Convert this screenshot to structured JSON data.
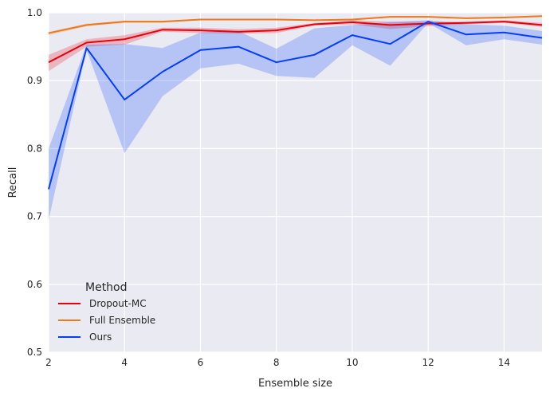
{
  "chart_data": {
    "type": "line",
    "xlabel": "Ensemble size",
    "ylabel": "Recall",
    "xlim": [
      2,
      15
    ],
    "ylim": [
      0.5,
      1.0
    ],
    "xticks": [
      "2",
      "4",
      "6",
      "8",
      "10",
      "12",
      "14"
    ],
    "yticks": [
      "0.5",
      "0.6",
      "0.7",
      "0.8",
      "0.9",
      "1.0"
    ],
    "grid": true,
    "legend": {
      "title": "Method",
      "placement": "lower-left"
    },
    "x": [
      2,
      3,
      4,
      5,
      6,
      7,
      8,
      9,
      10,
      11,
      12,
      13,
      14,
      15
    ],
    "series": [
      {
        "name": "Dropout-MC",
        "color": "#e8000b",
        "values": [
          0.927,
          0.956,
          0.961,
          0.975,
          0.974,
          0.972,
          0.974,
          0.983,
          0.986,
          0.982,
          0.984,
          0.985,
          0.987,
          0.982
        ],
        "lower": [
          0.914,
          0.95,
          0.953,
          0.972,
          0.97,
          0.969,
          0.97,
          0.981,
          0.983,
          0.976,
          0.98,
          0.983,
          0.985,
          0.979
        ],
        "upper": [
          0.938,
          0.961,
          0.967,
          0.978,
          0.978,
          0.976,
          0.978,
          0.985,
          0.989,
          0.987,
          0.987,
          0.987,
          0.989,
          0.985
        ]
      },
      {
        "name": "Full Ensemble",
        "color": "#f07818",
        "values": [
          0.97,
          0.982,
          0.987,
          0.987,
          0.99,
          0.99,
          0.99,
          0.989,
          0.99,
          0.994,
          0.994,
          0.992,
          0.993,
          0.995
        ],
        "lower": [
          0.967,
          0.98,
          0.985,
          0.985,
          0.989,
          0.989,
          0.989,
          0.988,
          0.989,
          0.993,
          0.993,
          0.991,
          0.992,
          0.994
        ],
        "upper": [
          0.972,
          0.984,
          0.988,
          0.988,
          0.991,
          0.991,
          0.991,
          0.99,
          0.991,
          0.995,
          0.995,
          0.993,
          0.994,
          0.996
        ]
      },
      {
        "name": "Ours",
        "color": "#023eff",
        "values": [
          0.74,
          0.948,
          0.872,
          0.913,
          0.945,
          0.95,
          0.927,
          0.938,
          0.967,
          0.954,
          0.987,
          0.968,
          0.971,
          0.963
        ],
        "lower": [
          0.695,
          0.945,
          0.793,
          0.877,
          0.918,
          0.925,
          0.907,
          0.904,
          0.952,
          0.922,
          0.985,
          0.952,
          0.961,
          0.953
        ],
        "upper": [
          0.8,
          0.953,
          0.954,
          0.948,
          0.971,
          0.973,
          0.947,
          0.977,
          0.982,
          0.986,
          0.989,
          0.983,
          0.981,
          0.973
        ]
      }
    ]
  }
}
